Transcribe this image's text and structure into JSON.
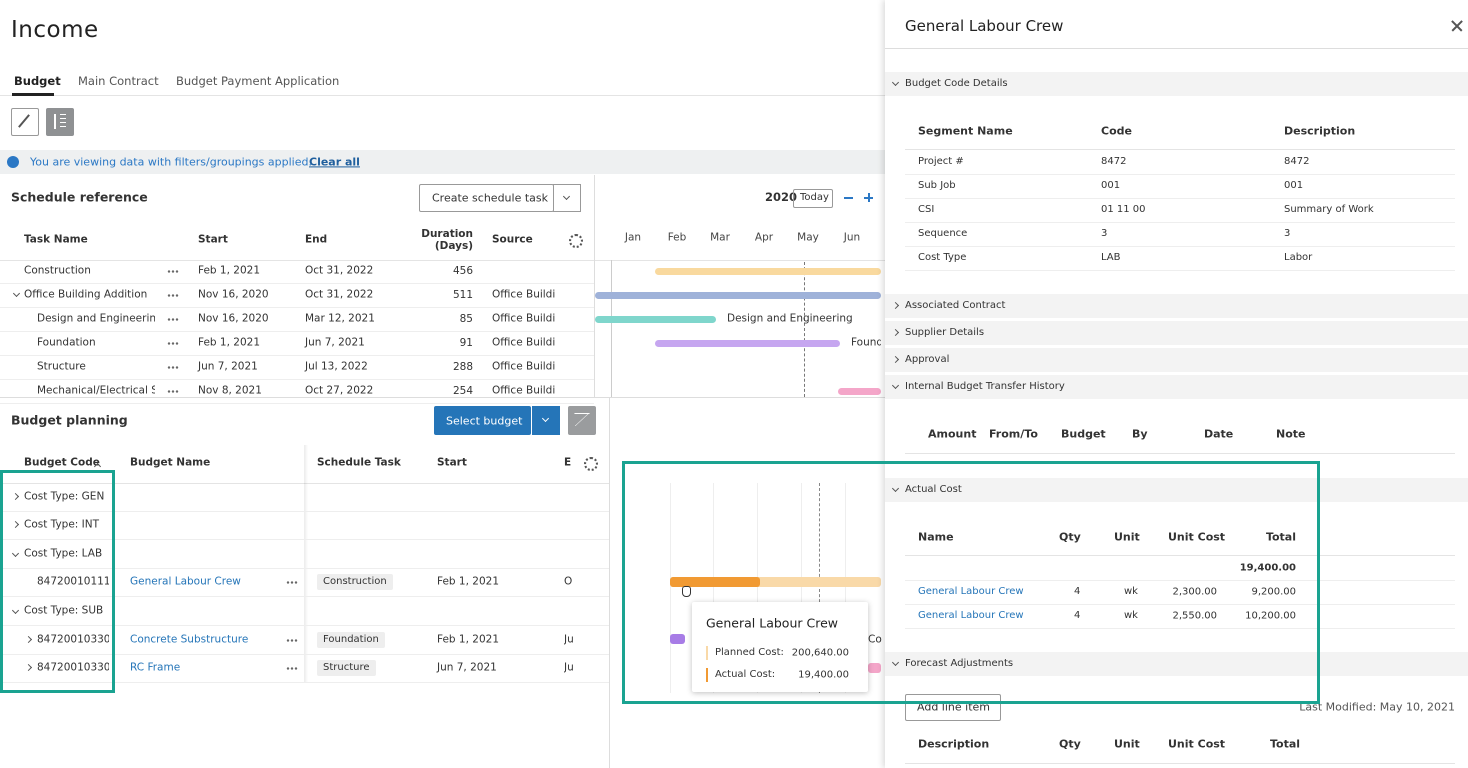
{
  "page": {
    "title": "Income",
    "tabs": [
      "Budget",
      "Main Contract",
      "Budget Payment Application"
    ]
  },
  "banner": {
    "message": "You are viewing data with filters/groupings applied.",
    "action": "Clear all"
  },
  "schedule": {
    "title": "Schedule reference",
    "create_button": "Create schedule task",
    "year": "2020",
    "today": "Today",
    "columns": [
      "Task Name",
      "Start",
      "End",
      "Duration (Days)",
      "Source"
    ],
    "months": [
      "Jan",
      "Feb",
      "Mar",
      "Apr",
      "May",
      "Jun"
    ],
    "rows": [
      {
        "name": "Construction",
        "start": "Feb 1, 2021",
        "end": "Oct 31, 2022",
        "duration": "456"
      },
      {
        "name": "Office Building Addition",
        "start": "Nov 16, 2020",
        "end": "Oct 31, 2022",
        "duration": "511",
        "source": "Office Building"
      },
      {
        "name": "Design and Engineering",
        "start": "Nov 16, 2020",
        "end": "Mar 12, 2021",
        "duration": "85",
        "source": "Office Building"
      },
      {
        "name": "Foundation",
        "start": "Feb 1, 2021",
        "end": "Jun 7, 2021",
        "duration": "91",
        "source": "Office Building"
      },
      {
        "name": "Structure",
        "start": "Jun 7, 2021",
        "end": "Jul 13, 2022",
        "duration": "288",
        "source": "Office Building"
      },
      {
        "name": "Mechanical/Electrical Sy...",
        "start": "Nov 8, 2021",
        "end": "Oct 27, 2022",
        "duration": "254",
        "source": "Office Building"
      }
    ]
  },
  "budget": {
    "title": "Budget planning",
    "select_button": "Select budget",
    "columns": [
      "Budget Code",
      "Budget Name",
      "Schedule Task",
      "Start",
      "E"
    ],
    "rows": [
      {
        "group": "Cost Type: GEN"
      },
      {
        "group": "Cost Type: INT"
      },
      {
        "group": "Cost Type: LAB"
      },
      {
        "code": "84720010111...",
        "name": "General Labour Crew",
        "task": "Construction",
        "start": "Feb 1, 2021",
        "end": "O"
      },
      {
        "group": "Cost Type: SUB"
      },
      {
        "code": "84720010330...",
        "name": "Concrete Substructure",
        "task": "Foundation",
        "start": "Feb 1, 2021",
        "end": "Ju"
      },
      {
        "code": "84720010330...",
        "name": "RC Frame",
        "task": "Structure",
        "start": "Jun 7, 2021",
        "end": "Ju"
      }
    ]
  },
  "tooltip": {
    "title": "General Labour Crew",
    "planned_label": "Planned Cost:",
    "planned_value": "200,640.00",
    "actual_label": "Actual Cost:",
    "actual_value": "19,400.00"
  },
  "panel": {
    "title": "General Labour Crew",
    "code_details": {
      "title": "Budget Code Details",
      "columns": [
        "Segment Name",
        "Code",
        "Description"
      ],
      "rows": [
        [
          "Project #",
          "8472",
          "8472"
        ],
        [
          "Sub Job",
          "001",
          "001"
        ],
        [
          "CSI",
          "01 11 00",
          "Summary of Work"
        ],
        [
          "Sequence",
          "3",
          "3"
        ],
        [
          "Cost Type",
          "LAB",
          "Labor"
        ]
      ]
    },
    "collapsed": [
      "Associated Contract",
      "Supplier Details",
      "Approval"
    ],
    "transfer": {
      "title": "Internal Budget Transfer History",
      "columns": [
        "Amount",
        "From/To",
        "Budget",
        "By",
        "Date",
        "Note"
      ]
    },
    "actual": {
      "title": "Actual Cost",
      "columns": [
        "Name",
        "Qty",
        "Unit",
        "Unit Cost",
        "Total"
      ],
      "total": "19,400.00",
      "rows": [
        [
          "General Labour Crew",
          "4",
          "wk",
          "2,300.00",
          "9,200.00"
        ],
        [
          "General Labour Crew",
          "4",
          "wk",
          "2,550.00",
          "10,200.00"
        ]
      ]
    },
    "forecast": {
      "title": "Forecast Adjustments",
      "add_button": "Add line item",
      "last_modified": "Last Modified: May 10, 2021",
      "columns": [
        "Description",
        "Qty",
        "Unit",
        "Unit Cost",
        "Total"
      ]
    }
  }
}
